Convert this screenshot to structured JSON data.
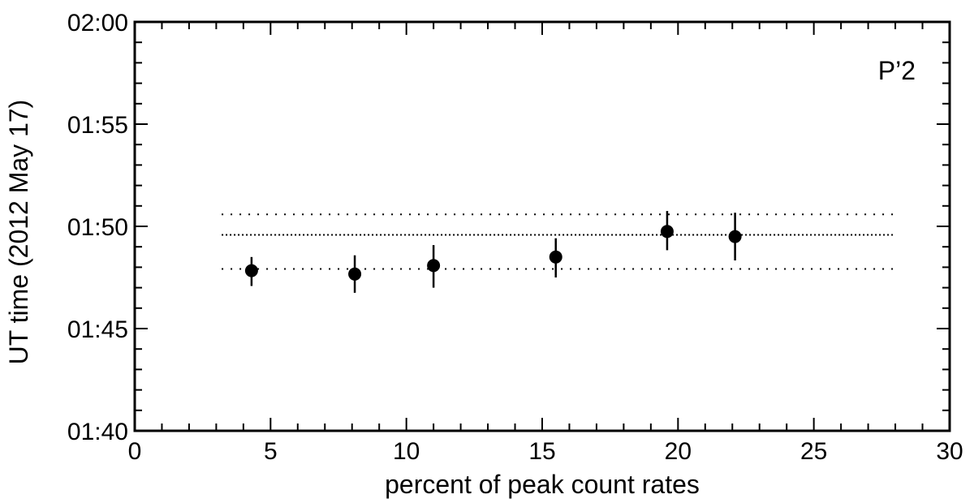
{
  "chart_data": {
    "type": "scatter",
    "title": "",
    "xlabel": "percent of peak count rates",
    "ylabel": "UT time (2012 May 17)",
    "annotation": "P’2",
    "xlim": [
      0,
      30
    ],
    "ylim_minutes_after_0140": [
      0,
      20
    ],
    "x_ticks": [
      0,
      5,
      10,
      15,
      20,
      25,
      30
    ],
    "x_tick_labels": [
      "0",
      "5",
      "10",
      "15",
      "20",
      "25",
      "30"
    ],
    "y_ticks_minutes_after_0140": [
      0,
      5,
      10,
      15,
      20
    ],
    "y_tick_labels": [
      "01:40",
      "01:45",
      "01:50",
      "01:55",
      "02:00"
    ],
    "grid": false,
    "points": [
      {
        "x": 4.3,
        "y": "01:47:50",
        "y_low": "01:47:05",
        "y_high": "01:48:30"
      },
      {
        "x": 8.1,
        "y": "01:47:40",
        "y_low": "01:46:45",
        "y_high": "01:48:35"
      },
      {
        "x": 11.0,
        "y": "01:48:05",
        "y_low": "01:47:00",
        "y_high": "01:49:05"
      },
      {
        "x": 15.5,
        "y": "01:48:30",
        "y_low": "01:47:30",
        "y_high": "01:49:25"
      },
      {
        "x": 19.6,
        "y": "01:49:45",
        "y_low": "01:48:50",
        "y_high": "01:50:45"
      },
      {
        "x": 22.1,
        "y": "01:49:30",
        "y_low": "01:48:20",
        "y_high": "01:50:40"
      }
    ],
    "reference_lines": [
      {
        "y": "01:49:35",
        "style": "dotted",
        "x_range": [
          3.2,
          28.0
        ]
      },
      {
        "y": "01:50:35",
        "style": "dotted",
        "x_range": [
          3.2,
          28.0
        ]
      },
      {
        "y": "01:47:55",
        "style": "dotted",
        "x_range": [
          3.2,
          28.0
        ]
      }
    ],
    "colors": {
      "axes": "#000000",
      "points": "#000000",
      "background": "#ffffff"
    }
  }
}
